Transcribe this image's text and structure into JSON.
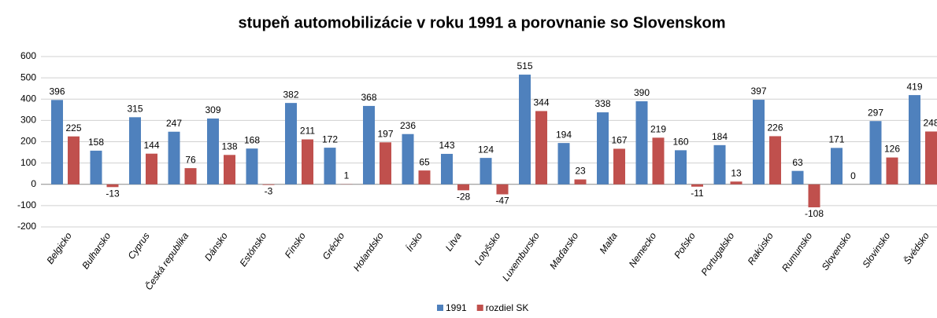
{
  "chart_data": {
    "type": "bar",
    "title": "stupeň automobilizácie v roku 1991 a porovnanie so Slovenskom",
    "categories": [
      "Belgicko",
      "Bulharsko",
      "Cyprus",
      "Česká republika",
      "Dánsko",
      "Estónsko",
      "Fínsko",
      "Grécko",
      "Holandsko",
      "Írsko",
      "Litva",
      "Lotyšsko",
      "Luxembursko",
      "Maďarsko",
      "Malta",
      "Nemecko",
      "Poľsko",
      "Portugalsko",
      "Rakúsko",
      "Rumunsko",
      "Slovensko",
      "Slovinsko",
      "Švédsko"
    ],
    "series": [
      {
        "name": "1991",
        "color": "#4f81bd",
        "values": [
          396,
          158,
          315,
          247,
          309,
          168,
          382,
          172,
          368,
          236,
          143,
          124,
          515,
          194,
          338,
          390,
          160,
          184,
          397,
          63,
          171,
          297,
          419
        ]
      },
      {
        "name": "rozdiel SK",
        "color": "#c0504d",
        "values": [
          225,
          -13,
          144,
          76,
          138,
          -3,
          211,
          1,
          197,
          65,
          -28,
          -47,
          344,
          23,
          167,
          219,
          -11,
          13,
          226,
          -108,
          0,
          126,
          248
        ]
      }
    ],
    "ylim": [
      -200,
      600
    ],
    "yticks": [
      -200,
      -100,
      0,
      100,
      200,
      300,
      400,
      500,
      600
    ],
    "grid": true,
    "legend": "bottom"
  }
}
